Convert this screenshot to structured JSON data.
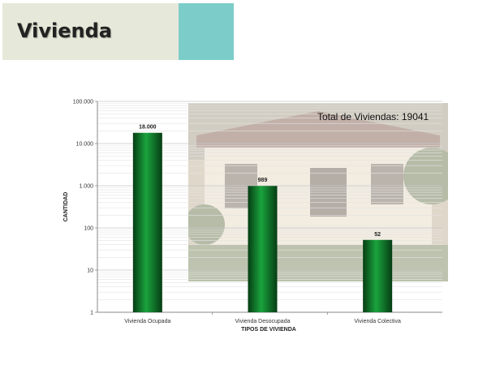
{
  "slide": {
    "title": "Vivienda"
  },
  "colors": {
    "title_bg": "#e6e8d9",
    "accent": "#7ccdc9",
    "bar": "#0f7a2c"
  },
  "chart_data": {
    "type": "bar",
    "categories": [
      "Vivienda Ocupada",
      "Vivienda Desocupada",
      "Vivienda Colectiva"
    ],
    "values": [
      18000,
      989,
      52
    ],
    "data_labels": [
      "18.000",
      "989",
      "52"
    ],
    "xlabel": "TIPOS DE VIVIENDA",
    "ylabel": "CANTIDAD",
    "y_scale": "log",
    "ylim": [
      1,
      100000
    ],
    "y_ticks": [
      1,
      10,
      100,
      1000,
      10000,
      100000
    ],
    "y_tick_labels": [
      "1",
      "10",
      "100",
      "1.000",
      "10.000",
      "100.000"
    ],
    "annotation": "Total de Viviendas: 19041",
    "grid": true
  }
}
